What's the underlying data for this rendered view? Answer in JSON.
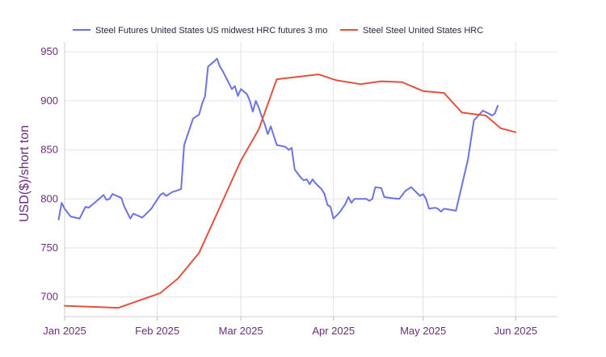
{
  "chart_data": {
    "type": "line",
    "title": "",
    "xlabel": "",
    "ylabel": "USD($)/short ton",
    "ylim": [
      680,
      960
    ],
    "y_ticks": [
      700,
      750,
      800,
      850,
      900,
      950
    ],
    "x_range": [
      0,
      165
    ],
    "x_ticks": [
      {
        "label": "Jan 2025",
        "day": 0
      },
      {
        "label": "Feb 2025",
        "day": 31
      },
      {
        "label": "Mar 2025",
        "day": 59
      },
      {
        "label": "Apr 2025",
        "day": 90
      },
      {
        "label": "May 2025",
        "day": 120
      },
      {
        "label": "Jun 2025",
        "day": 151
      }
    ],
    "grid": true,
    "legend_position": "top",
    "series": [
      {
        "name": "Steel Futures United States US midwest HRC futures 3 mo",
        "color": "#6b74e0",
        "points": [
          [
            -2,
            779
          ],
          [
            -1,
            796
          ],
          [
            0,
            790
          ],
          [
            2,
            782
          ],
          [
            5,
            780
          ],
          [
            7,
            792
          ],
          [
            8,
            791
          ],
          [
            10,
            796
          ],
          [
            13,
            804
          ],
          [
            14,
            799
          ],
          [
            15,
            800
          ],
          [
            16,
            805
          ],
          [
            19,
            801
          ],
          [
            20,
            792
          ],
          [
            22,
            780
          ],
          [
            23,
            785
          ],
          [
            26,
            781
          ],
          [
            29,
            790
          ],
          [
            32,
            804
          ],
          [
            33,
            806
          ],
          [
            34,
            803
          ],
          [
            36,
            807
          ],
          [
            38,
            809
          ],
          [
            39,
            810
          ],
          [
            40,
            855
          ],
          [
            43,
            882
          ],
          [
            45,
            886
          ],
          [
            46,
            897
          ],
          [
            47,
            905
          ],
          [
            48,
            935
          ],
          [
            50,
            940
          ],
          [
            51,
            943
          ],
          [
            52,
            935
          ],
          [
            53,
            930
          ],
          [
            55,
            918
          ],
          [
            56,
            912
          ],
          [
            57,
            915
          ],
          [
            58,
            905
          ],
          [
            59,
            912
          ],
          [
            61,
            907
          ],
          [
            62,
            900
          ],
          [
            63,
            889
          ],
          [
            64,
            900
          ],
          [
            65,
            893
          ],
          [
            66,
            884
          ],
          [
            67,
            876
          ],
          [
            68,
            866
          ],
          [
            69,
            874
          ],
          [
            71,
            855
          ],
          [
            74,
            853
          ],
          [
            75,
            850
          ],
          [
            76,
            852
          ],
          [
            77,
            830
          ],
          [
            79,
            822
          ],
          [
            80,
            819
          ],
          [
            81,
            820
          ],
          [
            82,
            815
          ],
          [
            83,
            820
          ],
          [
            84,
            816
          ],
          [
            86,
            810
          ],
          [
            87,
            805
          ],
          [
            88,
            794
          ],
          [
            89,
            792
          ],
          [
            90,
            780
          ],
          [
            92,
            786
          ],
          [
            94,
            795
          ],
          [
            95,
            802
          ],
          [
            96,
            796
          ],
          [
            97,
            800
          ],
          [
            99,
            800
          ],
          [
            101,
            800
          ],
          [
            102,
            798
          ],
          [
            103,
            800
          ],
          [
            104,
            812
          ],
          [
            106,
            811
          ],
          [
            107,
            802
          ],
          [
            109,
            801
          ],
          [
            112,
            800
          ],
          [
            114,
            808
          ],
          [
            116,
            812
          ],
          [
            119,
            803
          ],
          [
            120,
            805
          ],
          [
            121,
            800
          ],
          [
            122,
            790
          ],
          [
            124,
            791
          ],
          [
            125,
            790
          ],
          [
            126,
            787
          ],
          [
            127,
            790
          ],
          [
            129,
            789
          ],
          [
            131,
            788
          ],
          [
            135,
            840
          ],
          [
            137,
            880
          ],
          [
            140,
            890
          ],
          [
            142,
            887
          ],
          [
            143,
            885
          ],
          [
            144,
            887
          ],
          [
            145,
            895
          ]
        ]
      },
      {
        "name": "Steel Steel United States HRC",
        "color": "#e0533f",
        "points": [
          [
            0,
            691
          ],
          [
            18,
            689
          ],
          [
            32,
            704
          ],
          [
            38,
            719
          ],
          [
            45,
            745
          ],
          [
            51,
            785
          ],
          [
            59,
            839
          ],
          [
            65,
            871
          ],
          [
            71,
            922
          ],
          [
            85,
            927
          ],
          [
            91,
            921
          ],
          [
            99,
            917
          ],
          [
            106,
            920
          ],
          [
            113,
            919
          ],
          [
            120,
            910
          ],
          [
            127,
            908
          ],
          [
            133,
            888
          ],
          [
            141,
            885
          ],
          [
            146,
            872
          ],
          [
            151,
            868
          ]
        ]
      }
    ]
  }
}
